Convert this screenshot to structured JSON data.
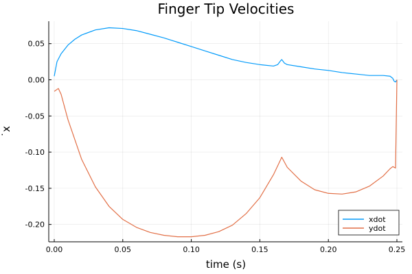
{
  "chart_data": {
    "type": "line",
    "title": "Finger Tip Velocities",
    "xlabel": "time (s)",
    "ylabel": "˙x",
    "xlim": [
      -0.004,
      0.254
    ],
    "ylim": [
      -0.224,
      0.081
    ],
    "xticks": [
      0.0,
      0.05,
      0.1,
      0.15,
      0.2,
      0.25
    ],
    "xtick_labels": [
      "0.00",
      "0.05",
      "0.10",
      "0.15",
      "0.20",
      "0.25"
    ],
    "yticks": [
      0.05,
      0.0,
      -0.05,
      -0.1,
      -0.15,
      -0.2
    ],
    "ytick_labels": [
      "0.05",
      "0.00",
      "-0.05",
      "-0.10",
      "-0.15",
      "-0.20"
    ],
    "grid": true,
    "legend_position": "bottom-right",
    "series": [
      {
        "name": "xdot",
        "color": "#009AFA",
        "x": [
          0.0,
          0.002,
          0.005,
          0.01,
          0.015,
          0.02,
          0.03,
          0.04,
          0.05,
          0.06,
          0.07,
          0.08,
          0.09,
          0.1,
          0.11,
          0.12,
          0.13,
          0.14,
          0.15,
          0.16,
          0.163,
          0.165,
          0.166,
          0.168,
          0.17,
          0.18,
          0.19,
          0.2,
          0.21,
          0.22,
          0.23,
          0.24,
          0.245,
          0.247,
          0.248,
          0.249,
          0.25
        ],
        "y": [
          0.005,
          0.025,
          0.036,
          0.048,
          0.056,
          0.062,
          0.069,
          0.072,
          0.071,
          0.068,
          0.063,
          0.058,
          0.052,
          0.046,
          0.04,
          0.034,
          0.028,
          0.024,
          0.021,
          0.019,
          0.021,
          0.026,
          0.028,
          0.023,
          0.021,
          0.018,
          0.015,
          0.013,
          0.01,
          0.008,
          0.006,
          0.006,
          0.005,
          0.002,
          -0.002,
          -0.003,
          0.0
        ]
      },
      {
        "name": "ydot",
        "color": "#E26F46",
        "x": [
          0.0,
          0.003,
          0.005,
          0.01,
          0.02,
          0.03,
          0.04,
          0.05,
          0.06,
          0.07,
          0.08,
          0.09,
          0.1,
          0.11,
          0.12,
          0.13,
          0.14,
          0.15,
          0.16,
          0.166,
          0.168,
          0.17,
          0.18,
          0.19,
          0.2,
          0.21,
          0.22,
          0.23,
          0.24,
          0.245,
          0.247,
          0.249,
          0.25
        ],
        "y": [
          -0.016,
          -0.012,
          -0.02,
          -0.055,
          -0.11,
          -0.148,
          -0.175,
          -0.193,
          -0.204,
          -0.211,
          -0.215,
          -0.217,
          -0.217,
          -0.215,
          -0.21,
          -0.201,
          -0.185,
          -0.163,
          -0.131,
          -0.107,
          -0.114,
          -0.121,
          -0.14,
          -0.152,
          -0.157,
          -0.158,
          -0.155,
          -0.147,
          -0.133,
          -0.123,
          -0.12,
          -0.122,
          0.0
        ]
      }
    ]
  }
}
